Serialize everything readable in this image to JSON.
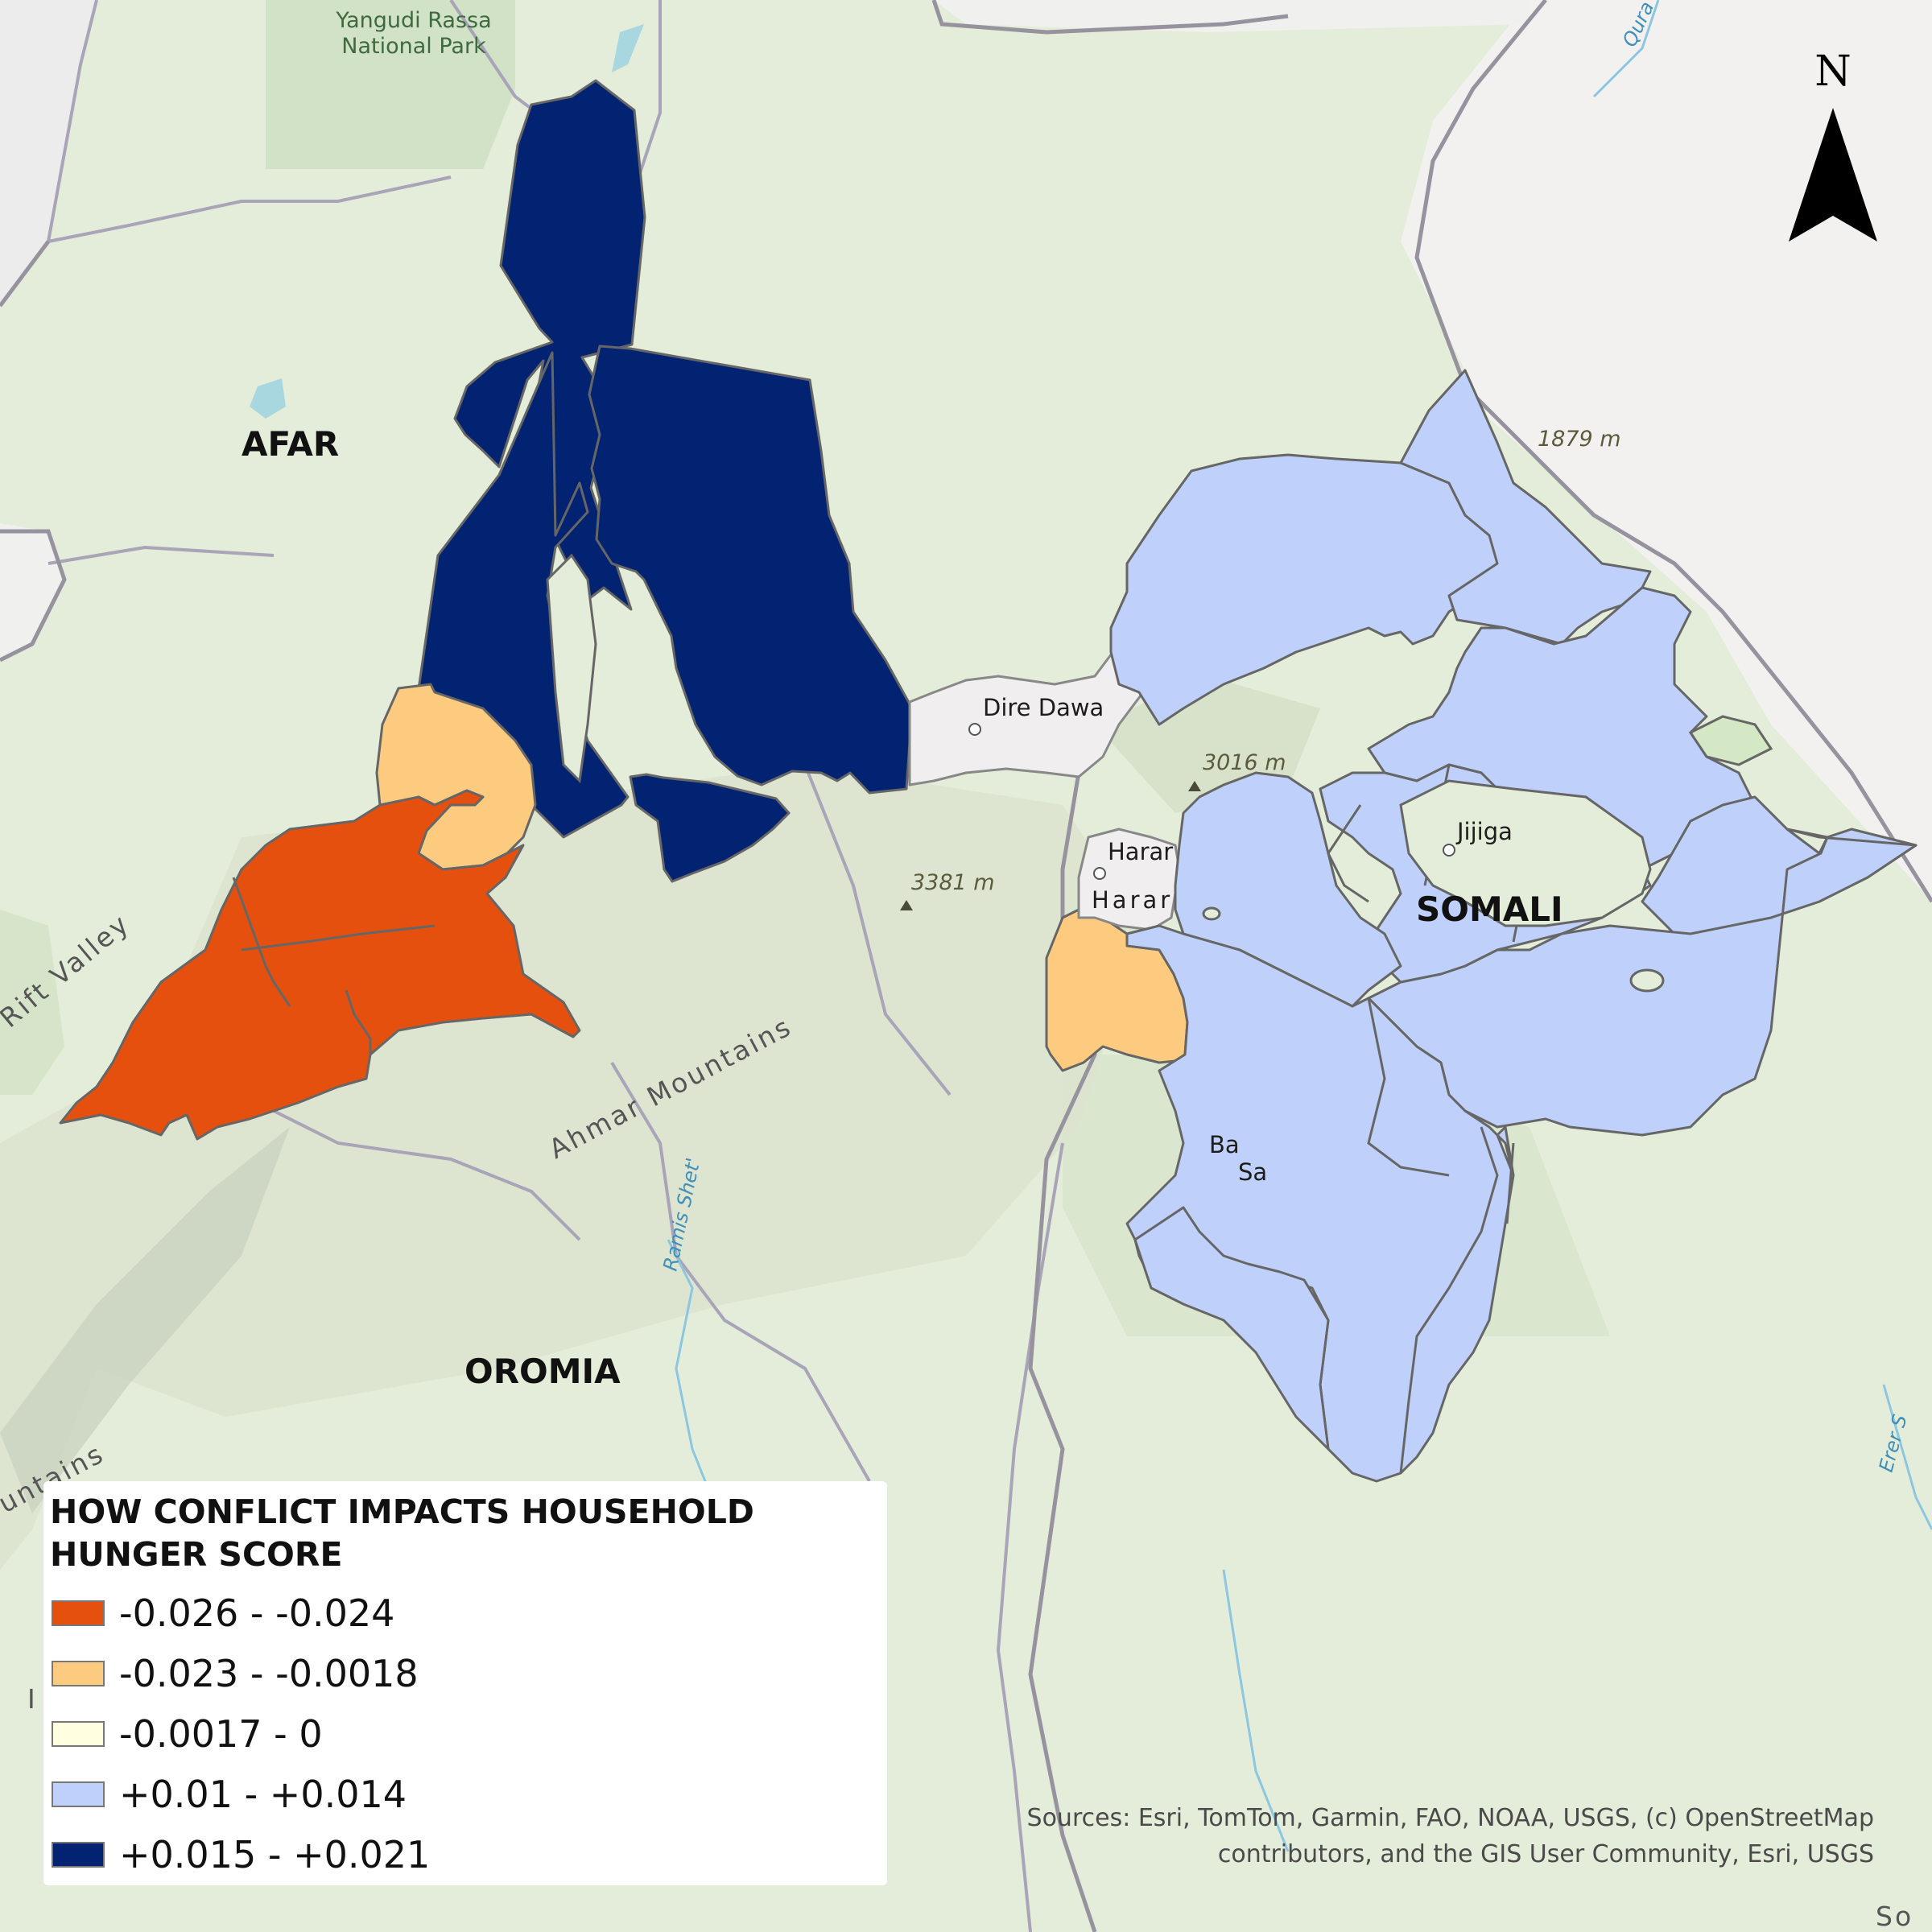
{
  "map": {
    "regions": [
      "AFAR",
      "OROMIA",
      "SOMALI"
    ],
    "cities": [
      "Dire Dawa",
      "Harar",
      "Jijiga"
    ],
    "harar_region_label": "Harar",
    "peaks": [
      "3016 m",
      "3381 m",
      "1879 m"
    ],
    "park": {
      "line1": "Yangudi Rassa",
      "line2": "National Park"
    },
    "features": {
      "mountains": "Ahmar Mountains",
      "valley": "Rift Valley",
      "mountains_edge": "untains",
      "river": "Ramis Shet'",
      "river_ne": "Qura",
      "river_se": "Erer S",
      "bottom_right": "So",
      "left_edge": "I",
      "partial_ba": "Ba",
      "partial_sa": "Sa"
    },
    "north_arrow": "N"
  },
  "legend": {
    "title": "HOW CONFLICT IMPACTS HOUSEHOLD HUNGER SCORE",
    "classes": [
      {
        "label": "-0.026 - -0.024",
        "color": "#e5500f"
      },
      {
        "label": "-0.023 - -0.0018",
        "color": "#fdcb7f"
      },
      {
        "label": "-0.0017 - 0",
        "color": "#fffee0"
      },
      {
        "label": "+0.01 - +0.014",
        "color": "#bfd1fb"
      },
      {
        "label": "+0.015 - +0.021",
        "color": "#022371"
      }
    ]
  },
  "sources": {
    "line1": "Sources:  Esri, TomTom, Garmin, FAO, NOAA, USGS, (c) OpenStreetMap",
    "line2": "contributors, and the GIS User Community, Esri, USGS"
  }
}
